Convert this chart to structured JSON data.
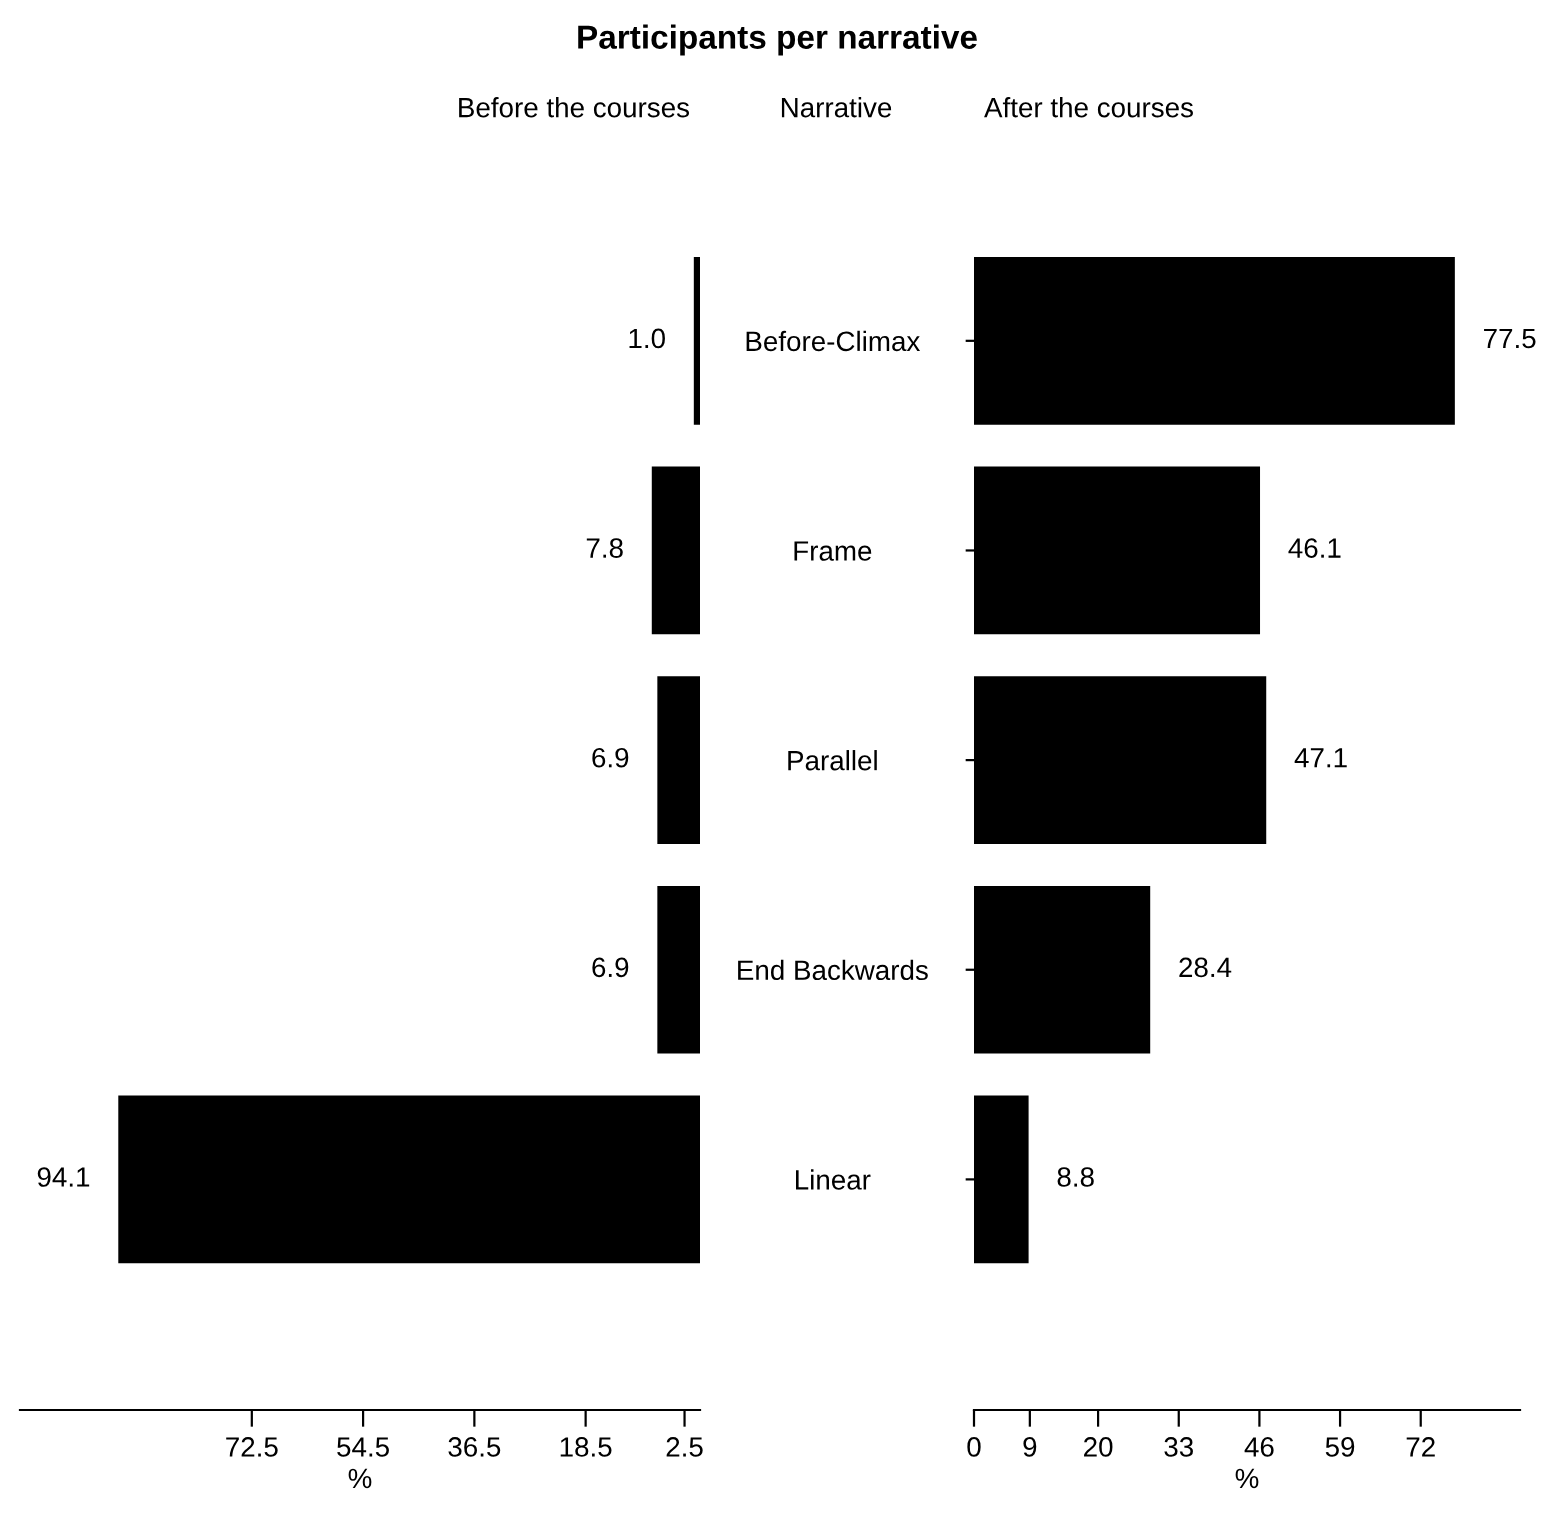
{
  "chart_data": [
    {
      "type": "bar",
      "orientation": "horizontal",
      "title": "Participants per narrative",
      "subtitle": "Before the courses",
      "xlabel": "%",
      "categories": [
        null,
        null,
        null,
        null,
        null
      ],
      "values": [
        1.0,
        7.8,
        6.9,
        6.9,
        94.1
      ],
      "value_labels": [
        "1.0",
        "7.8",
        "6.9",
        "6.9",
        "94.1"
      ],
      "color": "#000000",
      "xlim": [
        110,
        0
      ],
      "xticks": [
        72.5,
        54.5,
        36.5,
        18.5,
        2.5
      ],
      "tick_labels": "x",
      "grid": false
    },
    {
      "type": "bar",
      "orientation": "horizontal",
      "subtitle": "After the courses",
      "ylabel": "Narrative",
      "xlabel": "%",
      "categories": [
        "Before-Climax",
        "Frame",
        "Parallel",
        "End Backwards",
        "Linear"
      ],
      "values": [
        77.5,
        46.1,
        47.1,
        28.4,
        8.8
      ],
      "color": "#000000",
      "data_labels": true,
      "xlim": [
        0,
        88
      ],
      "xticks": [
        0,
        9,
        20,
        33,
        46,
        59,
        72
      ],
      "grid": false
    }
  ]
}
